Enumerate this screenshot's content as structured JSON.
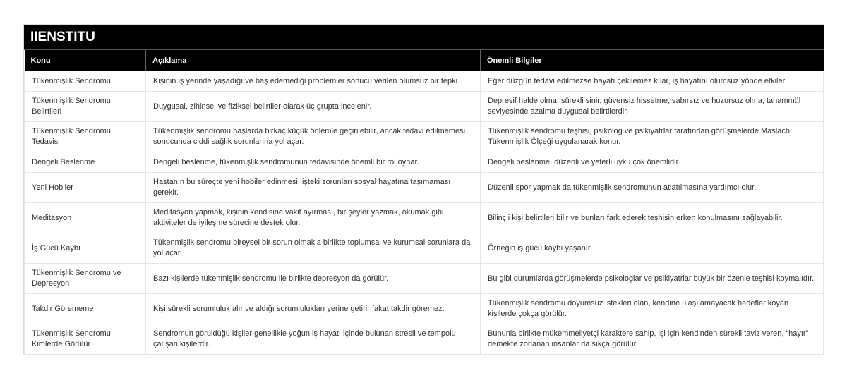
{
  "title": "IIENSTITU",
  "columns": [
    "Konu",
    "Açıklama",
    "Önemli Bilgiler"
  ],
  "rows": [
    [
      "Tükenmişlik Sendromu",
      "Kişinin iş yerinde yaşadığı ve baş edemediği problemler sonucu verilen olumsuz bir tepki.",
      "Eğer düzgün tedavi edilmezse hayatı çekilemez kılar, iş hayatını olumsuz yönde etkiler."
    ],
    [
      "Tükenmişlik Sendromu Belirtileri",
      "Duygusal, zihinsel ve fiziksel belirtiler olarak üç grupta incelenir.",
      "Depresif halde olma, sürekli sinir, güvensiz hissetme, sabırsız ve huzursuz olma, tahammül seviyesinde azalma duygusal belirtilerdir."
    ],
    [
      "Tükenmişlik Sendromu Tedavisi",
      "Tükenmişlik sendromu başlarda birkaç küçük önlemle geçirilebilir, ancak tedavi edilmemesi sonucunda ciddi sağlık sorunlarına yol açar.",
      "Tükenmişlik sendromu teşhisi, psikolog ve psikiyatrlar tarafından görüşmelerde Maslach Tükenmişlik Ölçeği uygulanarak konur."
    ],
    [
      "Dengeli Beslenme",
      "Dengeli beslenme, tükenmişlik sendromunun tedavisinde önemli bir rol oynar.",
      "Dengeli beslenme, düzenli ve yeterli uyku çok önemlidir."
    ],
    [
      "Yeni Hobiler",
      "Hastanın bu süreçte yeni hobiler edinmesi, işteki sorunları sosyal hayatına taşımaması gerekir.",
      "Düzenli spor yapmak da tükenmişlik sendromunun atlatılmasına yardımcı olur."
    ],
    [
      "Meditasyon",
      "Meditasyon yapmak, kişinin kendisine vakit ayırması, bir şeyler yazmak, okumak gibi aktiviteler de iyileşme sürecine destek olur.",
      "Bilinçli kişi belirtileri bilir ve bunları fark ederek teşhisin erken konulmasını sağlayabilir."
    ],
    [
      "İş Gücü Kaybı",
      "Tükenmişlik sendromu bireysel bir sorun olmakla birlikte toplumsal ve kurumsal sorunlara da yol açar.",
      "Örneğin iş gücü kaybı yaşanır."
    ],
    [
      "Tükenmişlik Sendromu ve Depresyon",
      "Bazı kişilerde tükenmişlik sendromu ile birlikte depresyon da görülür.",
      "Bu gibi durumlarda görüşmelerde psikologlar ve psikiyatrlar büyük bir özenle teşhisi koymalıdır."
    ],
    [
      "Takdir Görememe",
      "Kişi sürekli sorumluluk alır ve aldığı sorumlulukları yerine getirir fakat takdir göremez.",
      "Tükenmişlik sendromu doyumsuz istekleri olan, kendine ulaşılamayacak hedefler koyan kişilerde çokça görülür."
    ],
    [
      "Tükenmişlik Sendromu Kimlerde Görülür",
      "Sendromun görüldüğü kişiler genellikle yoğun iş hayatı içinde bulunan stresli ve tempolu çalışan kişilerdir.",
      "Bununla birlikte mükemmeliyetçi karaktere sahip, işi için kendinden sürekli taviz veren, “hayır” demekte zorlanan insanlar da sıkça görülür."
    ]
  ]
}
